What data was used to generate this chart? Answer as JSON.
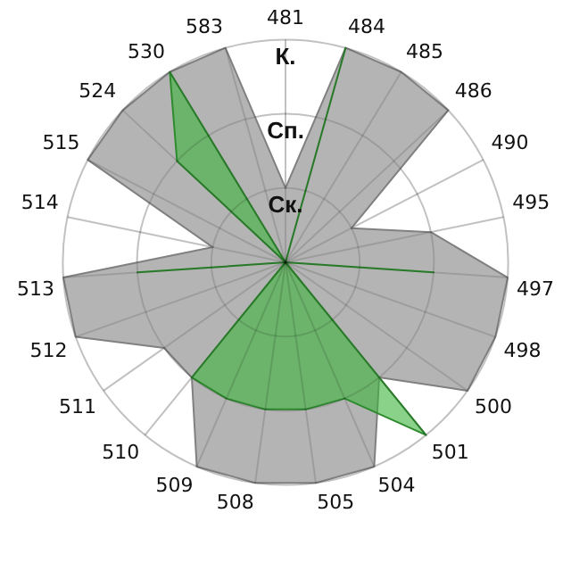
{
  "chart_data": {
    "type": "radar",
    "categories": [
      "481",
      "484",
      "485",
      "486",
      "490",
      "495",
      "497",
      "498",
      "500",
      "501",
      "504",
      "505",
      "508",
      "509",
      "510",
      "511",
      "512",
      "513",
      "514",
      "515",
      "524",
      "530",
      "583"
    ],
    "ylim": [
      0,
      3
    ],
    "yticks": [
      {
        "value": 1,
        "label": "Ск."
      },
      {
        "value": 2,
        "label": "Сп."
      },
      {
        "value": 3,
        "label": "К."
      }
    ],
    "grid": true,
    "legend": false,
    "marker": "none",
    "series": [
      {
        "color": "#b4b4b4",
        "values": [
          1,
          3,
          3,
          3,
          1,
          2,
          3,
          3,
          3,
          2,
          3,
          3,
          3,
          3,
          2,
          2,
          3,
          3,
          1,
          3,
          3,
          3,
          3
        ]
      },
      {
        "color": "#3cb43c",
        "values": [
          0,
          3,
          0,
          0,
          0,
          0,
          2,
          0,
          0,
          3,
          2,
          2,
          2,
          2,
          2,
          0,
          0,
          2,
          0,
          0,
          2,
          3,
          0
        ]
      }
    ]
  }
}
